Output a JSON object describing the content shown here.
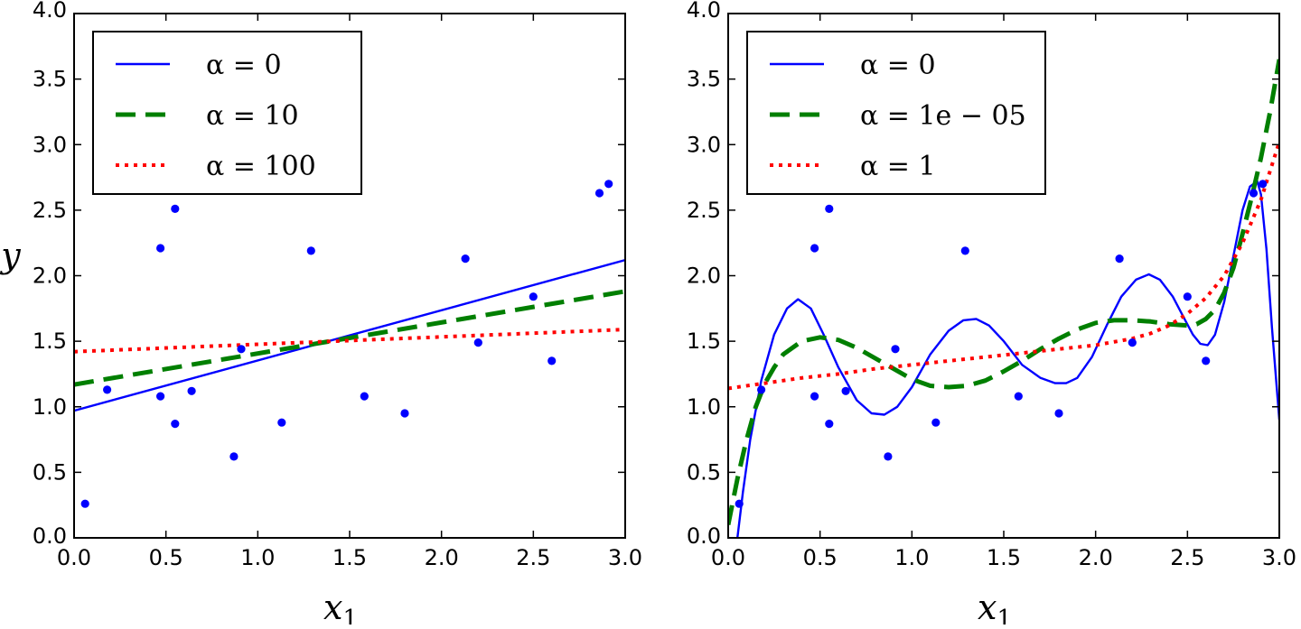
{
  "chart_data": [
    {
      "type": "scatter",
      "xlabel": "x",
      "xlabel_sub": "1",
      "ylabel": "y",
      "xlim": [
        0.0,
        3.0
      ],
      "ylim": [
        0.0,
        4.0
      ],
      "x_ticks": [
        "0.0",
        "0.5",
        "1.0",
        "1.5",
        "2.0",
        "2.5",
        "3.0"
      ],
      "y_ticks": [
        "0.0",
        "0.5",
        "1.0",
        "1.5",
        "2.0",
        "2.5",
        "3.0",
        "3.5",
        "4.0"
      ],
      "grid": false,
      "legend_position": "top-left",
      "points": {
        "x": [
          0.06,
          0.18,
          0.47,
          0.47,
          0.55,
          0.55,
          0.64,
          0.87,
          0.91,
          1.13,
          1.29,
          1.58,
          1.8,
          2.13,
          2.2,
          2.5,
          2.6,
          2.86,
          2.91
        ],
        "y": [
          0.26,
          1.13,
          2.21,
          1.08,
          2.51,
          0.87,
          1.12,
          0.62,
          1.44,
          0.88,
          2.19,
          1.08,
          0.95,
          2.13,
          1.49,
          1.84,
          1.35,
          2.63,
          2.7
        ],
        "color": "#0000ff"
      },
      "series": [
        {
          "label": "α = 0",
          "style": "solid",
          "color": "#0000ff",
          "x": [
            0.0,
            3.0
          ],
          "y": [
            0.97,
            2.12
          ]
        },
        {
          "label": "α = 10",
          "style": "dashed",
          "color": "#007f00",
          "x": [
            0.0,
            3.0
          ],
          "y": [
            1.17,
            1.88
          ]
        },
        {
          "label": "α = 100",
          "style": "dotted",
          "color": "#ff0000",
          "x": [
            0.0,
            3.0
          ],
          "y": [
            1.42,
            1.59
          ]
        }
      ]
    },
    {
      "type": "scatter",
      "xlabel": "x",
      "xlabel_sub": "1",
      "ylabel": "",
      "xlim": [
        0.0,
        3.0
      ],
      "ylim": [
        0.0,
        4.0
      ],
      "x_ticks": [
        "0.0",
        "0.5",
        "1.0",
        "1.5",
        "2.0",
        "2.5",
        "3.0"
      ],
      "y_ticks": [
        "0.0",
        "0.5",
        "1.0",
        "1.5",
        "2.0",
        "2.5",
        "3.0",
        "3.5",
        "4.0"
      ],
      "grid": false,
      "legend_position": "top-left",
      "points": {
        "x": [
          0.06,
          0.18,
          0.47,
          0.47,
          0.55,
          0.55,
          0.64,
          0.87,
          0.91,
          1.13,
          1.29,
          1.58,
          1.8,
          2.13,
          2.2,
          2.5,
          2.6,
          2.86,
          2.91
        ],
        "y": [
          0.26,
          1.13,
          2.21,
          1.08,
          2.51,
          0.87,
          1.12,
          0.62,
          1.44,
          0.88,
          2.19,
          1.08,
          0.95,
          2.13,
          1.49,
          1.84,
          1.35,
          2.63,
          2.7
        ],
        "color": "#0000ff"
      },
      "series": [
        {
          "label": "α = 0",
          "style": "solid",
          "color": "#0000ff",
          "x": [
            0.05,
            0.08,
            0.12,
            0.18,
            0.25,
            0.32,
            0.38,
            0.45,
            0.52,
            0.6,
            0.7,
            0.78,
            0.85,
            0.92,
            1.0,
            1.1,
            1.2,
            1.28,
            1.35,
            1.42,
            1.5,
            1.6,
            1.7,
            1.78,
            1.84,
            1.9,
            1.98,
            2.06,
            2.14,
            2.22,
            2.29,
            2.35,
            2.42,
            2.48,
            2.53,
            2.57,
            2.61,
            2.65,
            2.7,
            2.75,
            2.8,
            2.84,
            2.88,
            2.9,
            2.93,
            2.96,
            3.0
          ],
          "y": [
            0.0,
            0.35,
            0.75,
            1.2,
            1.55,
            1.75,
            1.82,
            1.75,
            1.55,
            1.3,
            1.05,
            0.95,
            0.94,
            1.0,
            1.15,
            1.4,
            1.58,
            1.66,
            1.67,
            1.62,
            1.5,
            1.32,
            1.22,
            1.18,
            1.18,
            1.22,
            1.38,
            1.62,
            1.84,
            1.97,
            2.01,
            1.97,
            1.84,
            1.68,
            1.55,
            1.48,
            1.47,
            1.55,
            1.8,
            2.15,
            2.5,
            2.68,
            2.72,
            2.62,
            2.2,
            1.6,
            0.9
          ]
        },
        {
          "label": "α = 1e − 05",
          "style": "dashed",
          "color": "#007f00",
          "x": [
            0.0,
            0.05,
            0.1,
            0.15,
            0.2,
            0.25,
            0.3,
            0.4,
            0.5,
            0.6,
            0.7,
            0.8,
            0.9,
            1.0,
            1.1,
            1.2,
            1.3,
            1.4,
            1.5,
            1.6,
            1.7,
            1.8,
            1.9,
            2.0,
            2.1,
            2.2,
            2.3,
            2.4,
            2.5,
            2.55,
            2.6,
            2.65,
            2.7,
            2.75,
            2.8,
            2.85,
            2.9,
            2.95,
            3.0
          ],
          "y": [
            0.1,
            0.45,
            0.75,
            1.0,
            1.18,
            1.3,
            1.4,
            1.5,
            1.53,
            1.51,
            1.45,
            1.37,
            1.29,
            1.21,
            1.16,
            1.15,
            1.16,
            1.2,
            1.27,
            1.35,
            1.44,
            1.52,
            1.59,
            1.64,
            1.66,
            1.66,
            1.65,
            1.63,
            1.62,
            1.63,
            1.67,
            1.74,
            1.87,
            2.06,
            2.32,
            2.6,
            2.9,
            3.25,
            3.65
          ]
        },
        {
          "label": "α = 1",
          "style": "dotted",
          "color": "#ff0000",
          "x": [
            0.0,
            0.2,
            0.4,
            0.6,
            0.8,
            1.0,
            1.2,
            1.4,
            1.6,
            1.8,
            2.0,
            2.2,
            2.3,
            2.4,
            2.5,
            2.6,
            2.7,
            2.8,
            2.9,
            2.95,
            3.0
          ],
          "y": [
            1.14,
            1.18,
            1.22,
            1.25,
            1.29,
            1.32,
            1.35,
            1.38,
            1.41,
            1.44,
            1.47,
            1.52,
            1.56,
            1.62,
            1.71,
            1.83,
            2.0,
            2.25,
            2.58,
            2.8,
            3.02
          ]
        }
      ]
    }
  ]
}
